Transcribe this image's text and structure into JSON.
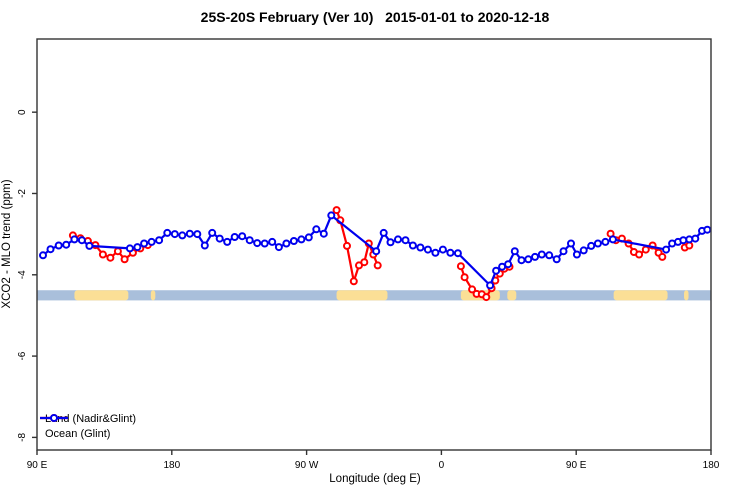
{
  "chart_data": {
    "type": "line",
    "title": "25S-20S February (Ver 10)   2015-01-01 to 2020-12-18",
    "xlabel": "Longitude (deg E)",
    "ylabel": "XCO2 - MLO trend (ppm)",
    "xlim": [
      90,
      540
    ],
    "ylim": [
      -8.31,
      1.8
    ],
    "grid": false,
    "legend_position": "bottom-left",
    "x_ticks": [
      {
        "pos": 90,
        "label": "90 E"
      },
      {
        "pos": 180,
        "label": "180"
      },
      {
        "pos": 270,
        "label": "90 W"
      },
      {
        "pos": 360,
        "label": "0"
      },
      {
        "pos": 450,
        "label": "90 E"
      },
      {
        "pos": 540,
        "label": "180"
      }
    ],
    "y_ticks": [
      {
        "pos": 0,
        "label": "0"
      },
      {
        "pos": -2,
        "label": "-2"
      },
      {
        "pos": -4,
        "label": "-4"
      },
      {
        "pos": -6,
        "label": "-6"
      },
      {
        "pos": -8,
        "label": "-8"
      }
    ],
    "colors": {
      "land": "#ff0000",
      "ocean": "#0000ee",
      "band_ocean": "#a9bfdb",
      "band_land": "#fbdf96",
      "axis": "#333333"
    },
    "map_band": {
      "val_top": -4.38,
      "val_bottom": -4.63,
      "land_patches_lon": [
        [
          115,
          151
        ],
        [
          166,
          169
        ],
        [
          290,
          324
        ],
        [
          373,
          399
        ],
        [
          404,
          410
        ],
        [
          475,
          511
        ],
        [
          522,
          525
        ]
      ]
    },
    "legend": [
      {
        "name": "Land (Nadir&Glint)",
        "series": "land"
      },
      {
        "name": "Ocean (Glint)",
        "series": "ocean"
      }
    ],
    "series": [
      {
        "name": "Land (Nadir&Glint)",
        "key": "land",
        "marker": "open-circle",
        "segments": [
          [
            [
              114,
              -3.03
            ],
            [
              119,
              -3.1
            ],
            [
              124,
              -3.17
            ],
            [
              129,
              -3.27
            ],
            [
              134,
              -3.5
            ],
            [
              139,
              -3.58
            ],
            [
              144,
              -3.42
            ],
            [
              148.5,
              -3.62
            ],
            [
              154,
              -3.46
            ],
            [
              159,
              -3.35
            ],
            [
              164,
              -3.27
            ]
          ],
          [
            [
              290,
              -2.41
            ],
            [
              292.5,
              -2.66
            ],
            [
              297,
              -3.29
            ],
            [
              301.5,
              -4.16
            ],
            [
              305,
              -3.77
            ],
            [
              308.5,
              -3.69
            ],
            [
              311.5,
              -3.23
            ],
            [
              314.5,
              -3.5
            ],
            [
              317.5,
              -3.77
            ]
          ],
          [
            [
              373,
              -3.79
            ],
            [
              375.5,
              -4.06
            ],
            [
              380.5,
              -4.36
            ],
            [
              383.5,
              -4.47
            ],
            [
              387,
              -4.48
            ],
            [
              390,
              -4.55
            ],
            [
              393.5,
              -4.33
            ],
            [
              396,
              -4.14
            ],
            [
              399,
              -3.97
            ],
            [
              402,
              -3.85
            ],
            [
              405.5,
              -3.8
            ]
          ],
          [
            [
              473,
              -2.99
            ],
            [
              476.5,
              -3.15
            ],
            [
              480.5,
              -3.11
            ],
            [
              485,
              -3.23
            ],
            [
              488.5,
              -3.44
            ],
            [
              492,
              -3.5
            ],
            [
              496.5,
              -3.38
            ],
            [
              501,
              -3.28
            ],
            [
              505,
              -3.46
            ],
            [
              507.5,
              -3.56
            ]
          ],
          [
            [
              522.5,
              -3.33
            ],
            [
              525.5,
              -3.28
            ]
          ]
        ]
      },
      {
        "name": "Ocean (Glint)",
        "key": "ocean",
        "marker": "open-circle",
        "segments": [
          [
            [
              94,
              -3.52
            ],
            [
              99,
              -3.37
            ],
            [
              104.5,
              -3.28
            ],
            [
              109.5,
              -3.26
            ],
            [
              115,
              -3.13
            ],
            [
              120,
              -3.15
            ],
            [
              125,
              -3.29
            ],
            [
              152,
              -3.35
            ],
            [
              157,
              -3.32
            ],
            [
              161.5,
              -3.23
            ],
            [
              166.5,
              -3.19
            ],
            [
              171.5,
              -3.15
            ],
            [
              177,
              -2.97
            ],
            [
              182,
              -3.0
            ],
            [
              187,
              -3.03
            ],
            [
              192,
              -2.99
            ],
            [
              197,
              -3.0
            ],
            [
              202,
              -3.28
            ],
            [
              207,
              -2.97
            ],
            [
              212,
              -3.11
            ],
            [
              217,
              -3.19
            ],
            [
              222,
              -3.07
            ],
            [
              227,
              -3.05
            ],
            [
              232,
              -3.15
            ],
            [
              237,
              -3.22
            ],
            [
              242,
              -3.23
            ],
            [
              247,
              -3.19
            ],
            [
              251.5,
              -3.32
            ],
            [
              256.5,
              -3.23
            ],
            [
              261.5,
              -3.17
            ],
            [
              266.5,
              -3.13
            ],
            [
              271.5,
              -3.08
            ],
            [
              276.5,
              -2.88
            ],
            [
              281.5,
              -2.99
            ],
            [
              286.5,
              -2.54
            ],
            [
              316.5,
              -3.42
            ],
            [
              321.5,
              -2.97
            ],
            [
              326,
              -3.2
            ],
            [
              331,
              -3.13
            ],
            [
              336,
              -3.15
            ],
            [
              341,
              -3.28
            ],
            [
              346,
              -3.33
            ],
            [
              351,
              -3.38
            ],
            [
              356,
              -3.46
            ],
            [
              361,
              -3.38
            ],
            [
              366,
              -3.46
            ],
            [
              371,
              -3.47
            ],
            [
              392.5,
              -4.26
            ],
            [
              396.5,
              -3.9
            ],
            [
              400.5,
              -3.8
            ],
            [
              404.5,
              -3.74
            ],
            [
              409,
              -3.42
            ],
            [
              413.5,
              -3.64
            ],
            [
              418,
              -3.62
            ],
            [
              422.5,
              -3.56
            ],
            [
              427,
              -3.5
            ],
            [
              432,
              -3.52
            ],
            [
              437,
              -3.62
            ],
            [
              441.5,
              -3.42
            ],
            [
              446.5,
              -3.23
            ],
            [
              450.5,
              -3.5
            ],
            [
              455,
              -3.4
            ],
            [
              460,
              -3.29
            ],
            [
              464.5,
              -3.23
            ],
            [
              469.5,
              -3.19
            ],
            [
              474.5,
              -3.13
            ],
            [
              510,
              -3.38
            ],
            [
              514,
              -3.23
            ],
            [
              518,
              -3.19
            ],
            [
              521.5,
              -3.15
            ],
            [
              525.5,
              -3.13
            ],
            [
              529.5,
              -3.11
            ],
            [
              534,
              -2.92
            ],
            [
              537.5,
              -2.89
            ]
          ]
        ]
      }
    ]
  }
}
